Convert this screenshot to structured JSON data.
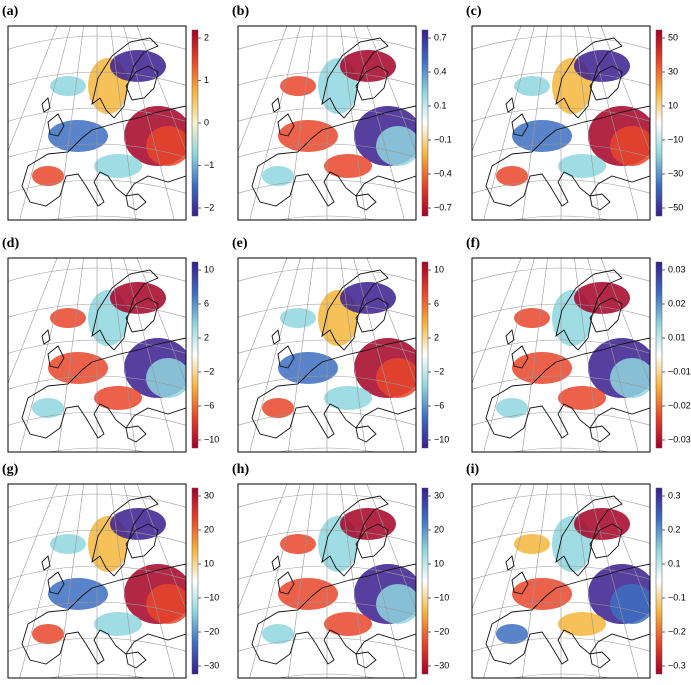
{
  "panels": [
    {
      "label": "(a)",
      "ticks": [
        "2",
        "1",
        "0",
        "−1",
        "−2"
      ],
      "colors": [
        "#a50026",
        "#e8452a",
        "#f4b63c",
        "#f7f3c8",
        "#8fd6df",
        "#3c6fc0",
        "#3a1d8f"
      ]
    },
    {
      "label": "(b)",
      "ticks": [
        "0.7",
        "0.4",
        "0.1",
        "−0.1",
        "−0.4",
        "−0.7"
      ],
      "colors": [
        "#3a1d8f",
        "#3c6fc0",
        "#8fd6df",
        "#ffffff",
        "#f4b63c",
        "#e8452a",
        "#a50026"
      ]
    },
    {
      "label": "(c)",
      "ticks": [
        "50",
        "30",
        "10",
        "−10",
        "−30",
        "−50"
      ],
      "colors": [
        "#a50026",
        "#e8452a",
        "#f4b63c",
        "#ffffff",
        "#8fd6df",
        "#3c6fc0",
        "#3a1d8f"
      ]
    },
    {
      "label": "(d)",
      "ticks": [
        "10",
        "6",
        "2",
        "−2",
        "−6",
        "−10"
      ],
      "colors": [
        "#3a1d8f",
        "#3c6fc0",
        "#8fd6df",
        "#ffffff",
        "#f4b63c",
        "#e8452a",
        "#a50026"
      ]
    },
    {
      "label": "(e)",
      "ticks": [
        "10",
        "6",
        "2",
        "−2",
        "−6",
        "−10"
      ],
      "colors": [
        "#a50026",
        "#e8452a",
        "#f4b63c",
        "#ffffff",
        "#8fd6df",
        "#3c6fc0",
        "#3a1d8f"
      ]
    },
    {
      "label": "(f)",
      "ticks": [
        "0.03",
        "0.02",
        "0.01",
        "−0.01",
        "−0.02",
        "−0.03"
      ],
      "colors": [
        "#3a1d8f",
        "#3c6fc0",
        "#8fd6df",
        "#ffffff",
        "#f4b63c",
        "#e8452a",
        "#a50026"
      ]
    },
    {
      "label": "(g)",
      "ticks": [
        "30",
        "20",
        "10",
        "−10",
        "−20",
        "−30"
      ],
      "colors": [
        "#a50026",
        "#e8452a",
        "#f4b63c",
        "#ffffff",
        "#8fd6df",
        "#3c6fc0",
        "#3a1d8f"
      ]
    },
    {
      "label": "(h)",
      "ticks": [
        "30",
        "20",
        "10",
        "−10",
        "−20",
        "−30"
      ],
      "colors": [
        "#3a1d8f",
        "#3c6fc0",
        "#8fd6df",
        "#ffffff",
        "#f4b63c",
        "#e8452a",
        "#a50026"
      ]
    },
    {
      "label": "(i)",
      "ticks": [
        "0.3",
        "0.2",
        "0.1",
        "−0.1",
        "−0.2",
        "−0.3"
      ],
      "colors": [
        "#3a1d8f",
        "#3c6fc0",
        "#8fd6df",
        "#ffffff",
        "#f4b63c",
        "#e8452a",
        "#a50026"
      ]
    }
  ]
}
